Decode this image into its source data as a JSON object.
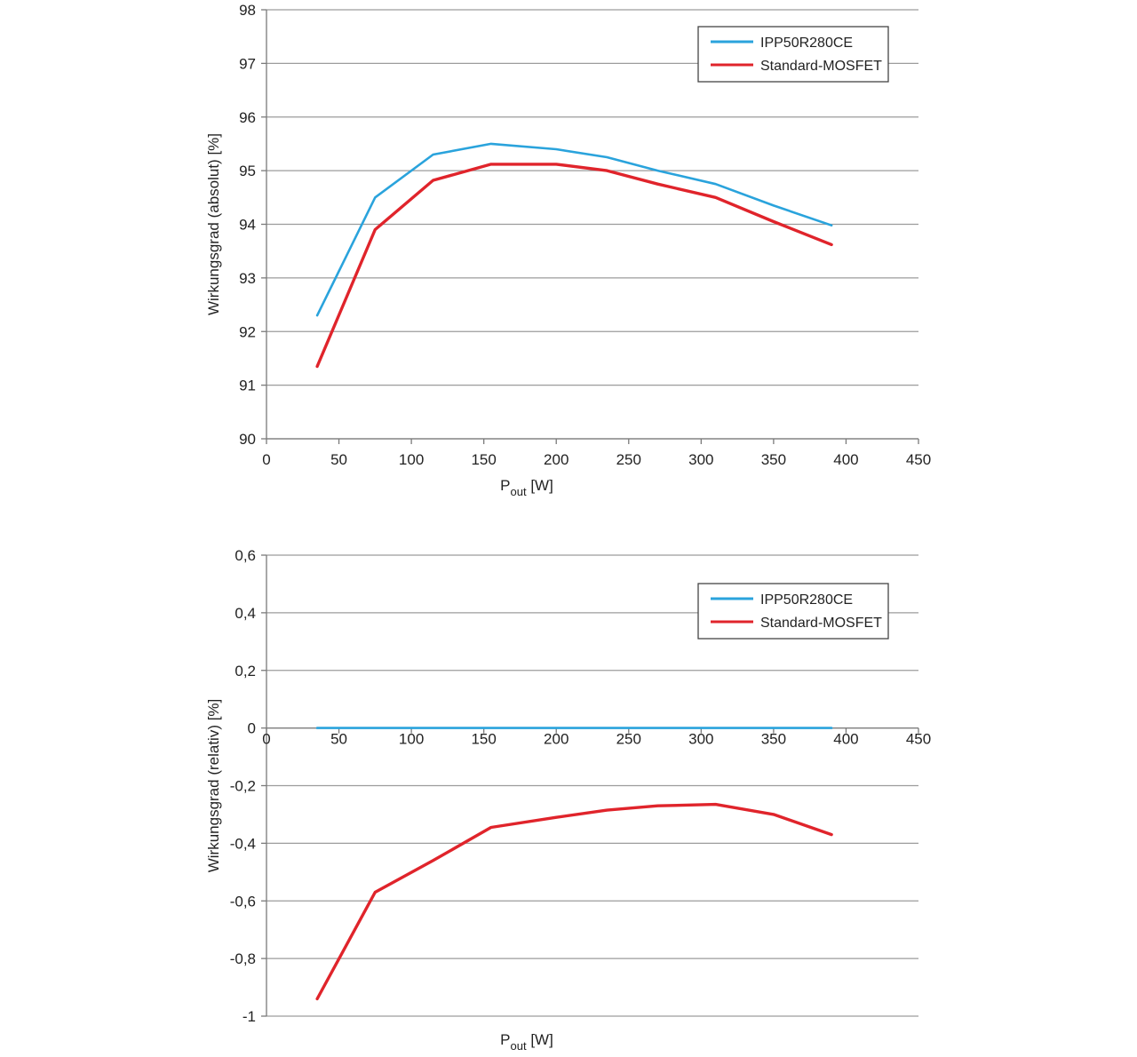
{
  "chart_data": [
    {
      "type": "line",
      "xlabel_main": "P",
      "xlabel_sub": "out",
      "xlabel_unit": " [W]",
      "ylabel": "Wirkungsgrad (absolut) [%]",
      "xlim": [
        0,
        450
      ],
      "ylim": [
        90,
        98
      ],
      "x_ticks": [
        "0",
        "50",
        "100",
        "150",
        "200",
        "250",
        "300",
        "350",
        "400",
        "450"
      ],
      "y_ticks": [
        "90",
        "91",
        "92",
        "93",
        "94",
        "95",
        "96",
        "97",
        "98"
      ],
      "grid": true,
      "legend_position": "top-right",
      "series": [
        {
          "name": "IPP50R280CE",
          "color": "#2aa3dc",
          "points": [
            [
              35,
              92.3
            ],
            [
              75,
              94.5
            ],
            [
              115,
              95.3
            ],
            [
              155,
              95.5
            ],
            [
              200,
              95.4
            ],
            [
              235,
              95.25
            ],
            [
              270,
              95.0
            ],
            [
              310,
              94.75
            ],
            [
              350,
              94.35
            ],
            [
              390,
              93.98
            ]
          ]
        },
        {
          "name": "Standard-MOSFET",
          "color": "#e0242b",
          "points": [
            [
              35,
              91.35
            ],
            [
              75,
              93.9
            ],
            [
              115,
              94.82
            ],
            [
              155,
              95.12
            ],
            [
              200,
              95.12
            ],
            [
              235,
              95.0
            ],
            [
              270,
              94.75
            ],
            [
              310,
              94.5
            ],
            [
              350,
              94.05
            ],
            [
              390,
              93.62
            ]
          ]
        }
      ]
    },
    {
      "type": "line",
      "xlabel_main": "P",
      "xlabel_sub": "out",
      "xlabel_unit": " [W]",
      "ylabel": "Wirkungsgrad (relativ) [%]",
      "xlim": [
        0,
        450
      ],
      "ylim": [
        -1,
        0.6
      ],
      "x_ticks": [
        "0",
        "50",
        "100",
        "150",
        "200",
        "250",
        "300",
        "350",
        "400",
        "450"
      ],
      "y_ticks": [
        "-1",
        "-0,8",
        "-0,6",
        "-0,4",
        "-0,2",
        "0",
        "0,2",
        "0,4",
        "0,6"
      ],
      "grid": true,
      "legend_position": "top-right",
      "series": [
        {
          "name": "IPP50R280CE",
          "color": "#2aa3dc",
          "points": [
            [
              35,
              0
            ],
            [
              75,
              0
            ],
            [
              155,
              0
            ],
            [
              235,
              0
            ],
            [
              310,
              0
            ],
            [
              390,
              0
            ]
          ]
        },
        {
          "name": "Standard-MOSFET",
          "color": "#e0242b",
          "points": [
            [
              35,
              -0.94
            ],
            [
              75,
              -0.57
            ],
            [
              115,
              -0.46
            ],
            [
              155,
              -0.345
            ],
            [
              200,
              -0.31
            ],
            [
              235,
              -0.285
            ],
            [
              270,
              -0.27
            ],
            [
              310,
              -0.265
            ],
            [
              350,
              -0.3
            ],
            [
              390,
              -0.37
            ]
          ]
        }
      ]
    }
  ]
}
